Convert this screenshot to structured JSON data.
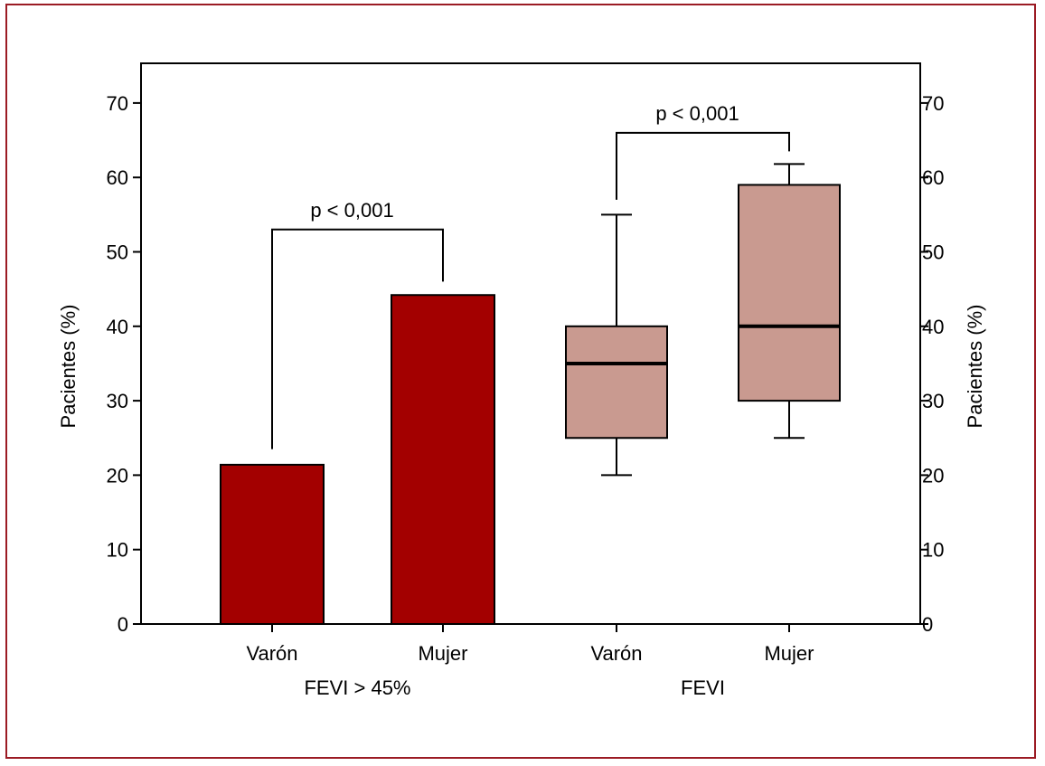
{
  "chart_data": {
    "type": "bar",
    "left_axis": {
      "label": "Pacientes (%)",
      "ticks": [
        "0",
        "10",
        "20",
        "30",
        "40",
        "50",
        "60",
        "70"
      ],
      "ylim": [
        0,
        75
      ]
    },
    "right_axis": {
      "label": "Pacientes (%)",
      "ticks": [
        "0",
        "10",
        "20",
        "30",
        "40",
        "50",
        "60",
        "70"
      ],
      "ylim": [
        0,
        75
      ]
    },
    "groups": [
      {
        "label": "FEVI > 45%",
        "kind": "bar",
        "color": "#a30000",
        "items": [
          {
            "category": "Varón",
            "value": 21.4
          },
          {
            "category": "Mujer",
            "value": 44.2
          }
        ],
        "bracket": {
          "text": "p < 0,001",
          "y": 53,
          "left_end": 23.5,
          "right_end": 46
        }
      },
      {
        "label": "FEVI",
        "kind": "box",
        "color": "#c99a90",
        "items": [
          {
            "category": "Varón",
            "min": 20,
            "q1": 25,
            "median": 35,
            "q3": 40,
            "max": 55
          },
          {
            "category": "Mujer",
            "min": 25,
            "q1": 30,
            "median": 40,
            "q3": 59,
            "max": 61.8
          }
        ],
        "bracket": {
          "text": "p < 0,001",
          "y": 66,
          "left_end": 57,
          "right_end": 63.5
        }
      }
    ]
  }
}
